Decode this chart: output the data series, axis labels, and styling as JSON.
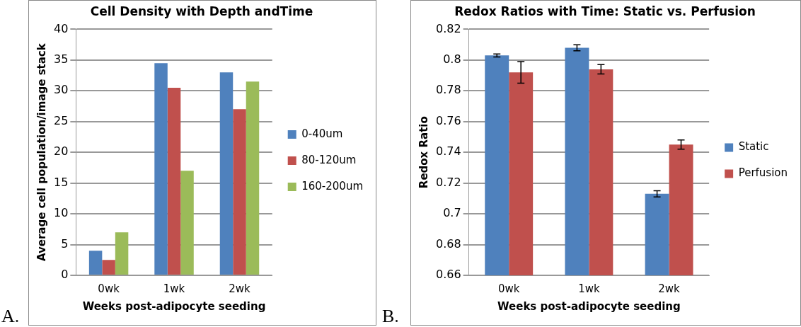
{
  "chart_data": [
    {
      "type": "bar",
      "title": "Cell Density with Depth andTime",
      "xlabel": "Weeks post-adipocyte seeding",
      "ylabel": "Average cell population/image stack",
      "categories": [
        "0wk",
        "1wk",
        "2wk"
      ],
      "series": [
        {
          "name": "0-40um",
          "color": "#4f81bd",
          "values": [
            4,
            34.5,
            33
          ]
        },
        {
          "name": "80-120um",
          "color": "#c0504d",
          "values": [
            2.5,
            30.5,
            27
          ]
        },
        {
          "name": "160-200um",
          "color": "#9bbb59",
          "values": [
            7,
            17,
            31.5
          ]
        }
      ],
      "ylim": [
        0,
        40
      ],
      "yticks": [
        0,
        5,
        10,
        15,
        20,
        25,
        30,
        35,
        40
      ],
      "grid": "y",
      "legend": "right",
      "annotations": [
        "A."
      ]
    },
    {
      "type": "bar",
      "title": "Redox Ratios with Time: Static vs. Perfusion",
      "xlabel": "Weeks post-adipocyte seeding",
      "ylabel": "Redox Ratio",
      "categories": [
        "0wk",
        "1wk",
        "2wk"
      ],
      "series": [
        {
          "name": "Static",
          "color": "#4f81bd",
          "values": [
            0.803,
            0.808,
            0.713
          ],
          "errors": [
            0.001,
            0.002,
            0.002
          ]
        },
        {
          "name": "Perfusion",
          "color": "#c0504d",
          "values": [
            0.792,
            0.794,
            0.745
          ],
          "errors": [
            0.007,
            0.003,
            0.003
          ]
        }
      ],
      "ylim": [
        0.66,
        0.82
      ],
      "yticks": [
        0.66,
        0.68,
        0.7,
        0.72,
        0.74,
        0.76,
        0.78,
        0.8,
        0.82
      ],
      "grid": "y",
      "legend": "right",
      "annotations": [
        "B."
      ]
    }
  ]
}
